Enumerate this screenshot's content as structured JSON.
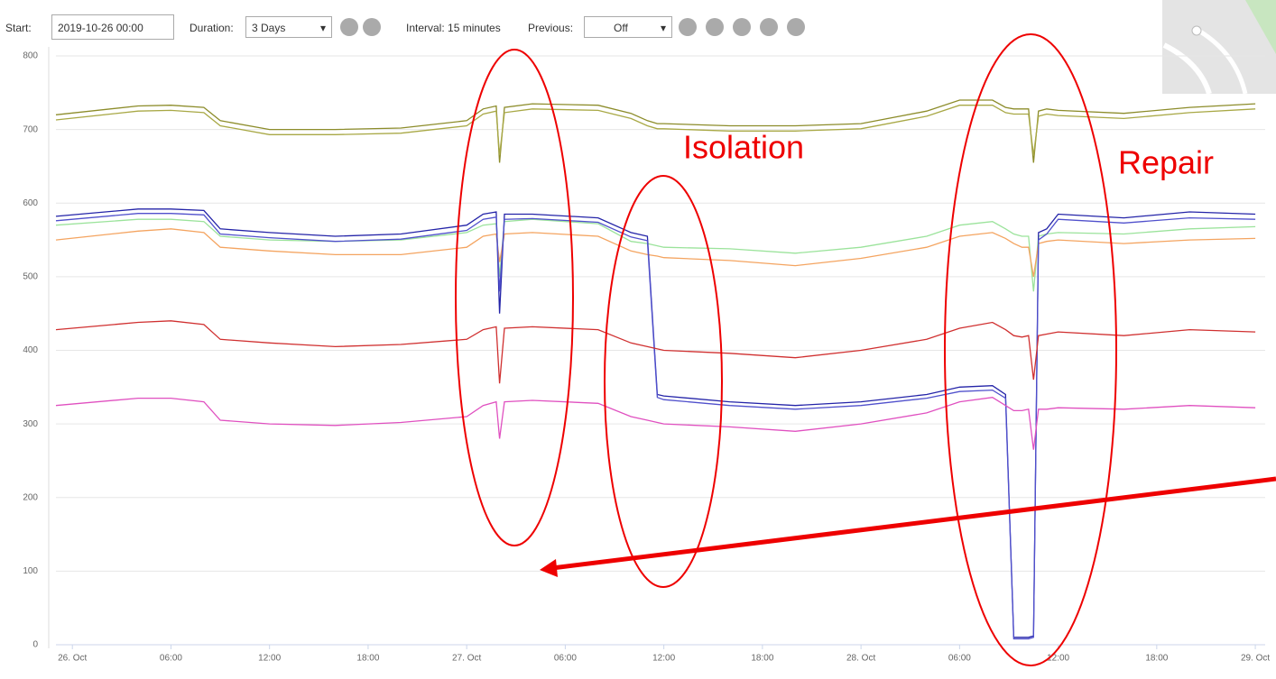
{
  "toolbar": {
    "start_label": "Start:",
    "start_value": "2019-10-26 00:00",
    "duration_label": "Duration:",
    "duration_value": "3 Days",
    "interval": "Interval: 15 minutes",
    "previous_label": "Previous:",
    "previous_value": "Off"
  },
  "chart_data": {
    "type": "line",
    "x": [
      -1,
      4,
      6,
      8,
      9,
      12,
      16,
      20,
      24,
      25,
      25.8,
      26,
      26.3,
      28,
      32,
      34,
      35,
      35.6,
      36,
      40,
      44,
      48,
      52,
      54,
      56,
      56.8,
      57.3,
      57.8,
      58.2,
      58.5,
      58.8,
      59.3,
      60,
      64,
      68,
      72
    ],
    "xlim": [
      -1,
      72.6
    ],
    "xticks": [
      {
        "value": 0,
        "label": "26. Oct"
      },
      {
        "value": 6,
        "label": "06:00"
      },
      {
        "value": 12,
        "label": "12:00"
      },
      {
        "value": 18,
        "label": "18:00"
      },
      {
        "value": 24,
        "label": "27. Oct"
      },
      {
        "value": 30,
        "label": "06:00"
      },
      {
        "value": 36,
        "label": "12:00"
      },
      {
        "value": 42,
        "label": "18:00"
      },
      {
        "value": 48,
        "label": "28. Oct"
      },
      {
        "value": 54,
        "label": "06:00"
      },
      {
        "value": 60,
        "label": "12:00"
      },
      {
        "value": 66,
        "label": "18:00"
      },
      {
        "value": 72,
        "label": "29. Oct"
      }
    ],
    "ylim": [
      0,
      800
    ],
    "yticks": [
      0,
      100,
      200,
      300,
      400,
      500,
      600,
      700,
      800
    ],
    "grid": true,
    "series": [
      {
        "color": "#8c8c2a",
        "values": [
          720,
          732,
          733,
          730,
          712,
          700,
          700,
          702,
          712,
          728,
          732,
          655,
          730,
          735,
          733,
          722,
          712,
          708,
          708,
          705,
          705,
          708,
          725,
          740,
          740,
          730,
          728,
          728,
          728,
          655,
          725,
          728,
          726,
          722,
          730,
          735
        ]
      },
      {
        "color": "#a8a845",
        "values": [
          713,
          725,
          726,
          723,
          705,
          693,
          693,
          695,
          705,
          721,
          725,
          665,
          723,
          728,
          726,
          715,
          705,
          701,
          701,
          698,
          698,
          701,
          718,
          733,
          733,
          723,
          721,
          721,
          721,
          665,
          718,
          721,
          719,
          715,
          723,
          728
        ]
      },
      {
        "color": "#9be39b",
        "values": [
          570,
          578,
          578,
          575,
          555,
          550,
          548,
          550,
          560,
          570,
          572,
          500,
          575,
          578,
          572,
          548,
          545,
          542,
          540,
          538,
          532,
          540,
          555,
          570,
          575,
          565,
          558,
          555,
          555,
          480,
          555,
          558,
          560,
          558,
          565,
          568
        ]
      },
      {
        "color": "#f4a460",
        "values": [
          550,
          562,
          565,
          560,
          540,
          535,
          530,
          530,
          540,
          555,
          558,
          520,
          558,
          560,
          555,
          535,
          530,
          528,
          526,
          522,
          515,
          525,
          540,
          555,
          560,
          552,
          545,
          540,
          540,
          500,
          545,
          548,
          550,
          545,
          550,
          552
        ]
      },
      {
        "color": "#2424a8",
        "values": [
          582,
          592,
          592,
          590,
          565,
          560,
          555,
          558,
          570,
          585,
          588,
          450,
          585,
          585,
          580,
          560,
          555,
          340,
          338,
          330,
          325,
          330,
          340,
          350,
          352,
          340,
          10,
          10,
          10,
          12,
          560,
          565,
          585,
          580,
          588,
          585
        ]
      },
      {
        "color": "#5050cc",
        "values": [
          576,
          586,
          586,
          584,
          558,
          553,
          548,
          551,
          563,
          578,
          581,
          480,
          578,
          579,
          574,
          554,
          549,
          336,
          333,
          325,
          320,
          325,
          335,
          344,
          346,
          335,
          8,
          8,
          8,
          10,
          550,
          558,
          578,
          573,
          580,
          578
        ]
      },
      {
        "color": "#d03030",
        "values": [
          428,
          438,
          440,
          435,
          415,
          410,
          405,
          408,
          415,
          428,
          432,
          355,
          430,
          432,
          428,
          410,
          405,
          402,
          400,
          396,
          390,
          400,
          415,
          430,
          438,
          428,
          420,
          418,
          420,
          360,
          420,
          422,
          425,
          420,
          428,
          425
        ]
      },
      {
        "color": "#e050c0",
        "values": [
          325,
          335,
          335,
          330,
          305,
          300,
          298,
          302,
          310,
          325,
          330,
          280,
          330,
          332,
          328,
          310,
          305,
          302,
          300,
          296,
          290,
          300,
          315,
          330,
          336,
          325,
          318,
          318,
          320,
          265,
          320,
          320,
          322,
          320,
          325,
          322
        ]
      }
    ],
    "annotations": [
      "Isolation",
      "Repair"
    ]
  }
}
